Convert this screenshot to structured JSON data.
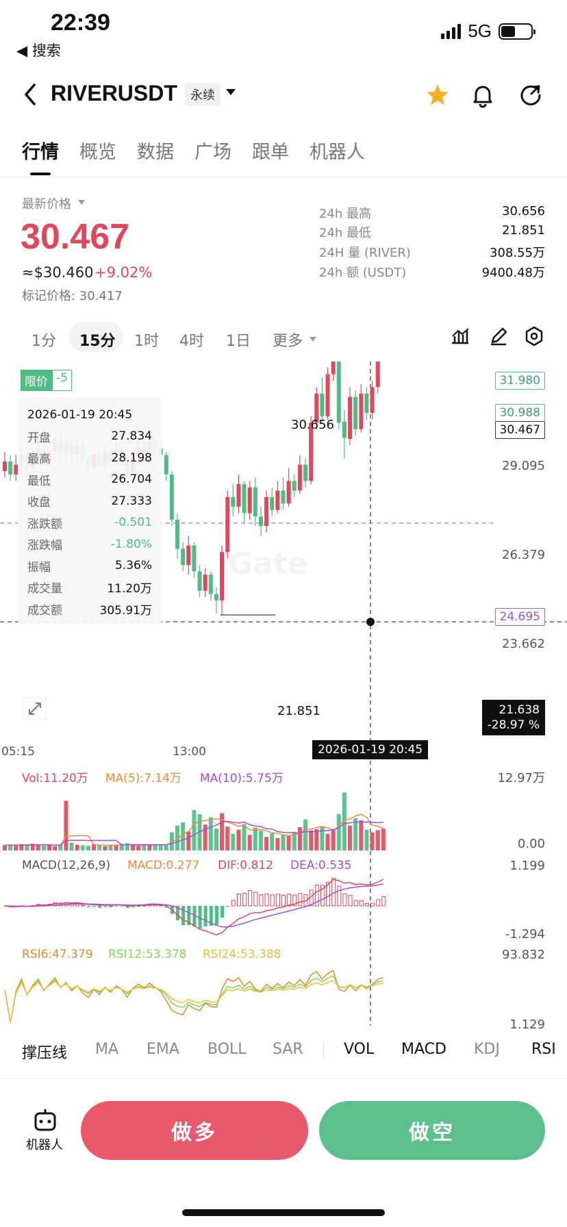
{
  "status": {
    "time": "22:39",
    "back_app": "◀ 搜索",
    "network": "5G"
  },
  "header": {
    "pair": "RIVERUSDT",
    "contract_type": "永续"
  },
  "tabs": [
    {
      "label": "行情",
      "active": true
    },
    {
      "label": "概览"
    },
    {
      "label": "数据"
    },
    {
      "label": "广场"
    },
    {
      "label": "跟单"
    },
    {
      "label": "机器人"
    }
  ],
  "price": {
    "label": "最新价格",
    "last": "30.467",
    "usd": "≈$30.460",
    "change": "+9.02%",
    "mark": "标记价格: 30.417"
  },
  "stats": [
    {
      "label": "24h  最高",
      "value": "30.656"
    },
    {
      "label": "24h  最低",
      "value": "21.851"
    },
    {
      "label": "24H  量 (RIVER)",
      "value": "308.55万"
    },
    {
      "label": "24h  额 (USDT)",
      "value": "9400.48万"
    }
  ],
  "timeframes": [
    {
      "label": "1分"
    },
    {
      "label": "15分",
      "active": true
    },
    {
      "label": "1时"
    },
    {
      "label": "4时"
    },
    {
      "label": "1日"
    },
    {
      "label": "更多"
    }
  ],
  "chart": {
    "limit_label": "限价",
    "limit_count": "-5",
    "price_levels": [
      "31.980",
      "30.988",
      "30.467",
      "24.695"
    ],
    "axis": [
      "29.095",
      "26.379",
      "23.662"
    ],
    "high_marker": "30.656",
    "low_marker": "21.851",
    "cursor_price": "21.638",
    "cursor_pct": "-28.97 %",
    "time_labels": [
      "05:15",
      "13:00"
    ],
    "cursor_time": "2026-01-19 20:45",
    "watermark": "Gate"
  },
  "tooltip": {
    "time": "2026-01-19 20:45",
    "rows": [
      {
        "k": "开盘",
        "v": "27.834"
      },
      {
        "k": "最高",
        "v": "28.198"
      },
      {
        "k": "最低",
        "v": "26.704"
      },
      {
        "k": "收盘",
        "v": "27.333"
      },
      {
        "k": "涨跌额",
        "v": "-0.501"
      },
      {
        "k": "涨跌幅",
        "v": "-1.80%"
      },
      {
        "k": "振幅",
        "v": "5.36%"
      },
      {
        "k": "成交量",
        "v": "11.20万"
      },
      {
        "k": "成交额",
        "v": "305.91万"
      }
    ]
  },
  "volume": {
    "vol": "Vol:11.20万",
    "ma5": "MA(5):7.14万",
    "ma10": "MA(10):5.75万",
    "max": "12.97万",
    "min": "0.00"
  },
  "macd": {
    "name": "MACD(12,26,9)",
    "macd": "MACD:0.277",
    "dif": "DIF:0.812",
    "dea": "DEA:0.535",
    "max": "1.199",
    "min": "-1.294"
  },
  "rsi": {
    "r6": "RSI6:47.379",
    "r12": "RSI12:53.378",
    "r24": "RSI24:53.388",
    "max": "93.832",
    "min": "1.129"
  },
  "indicator_tabs": [
    "撑压线",
    "MA",
    "EMA",
    "BOLL",
    "SAR",
    "VOL",
    "MACD",
    "KDJ",
    "RSI"
  ],
  "bottom": {
    "robot": "机器人",
    "long": "做多",
    "short": "做空"
  },
  "colors": {
    "up": "#e0475b",
    "down": "#4dbd84",
    "accent": "#f5b025"
  }
}
